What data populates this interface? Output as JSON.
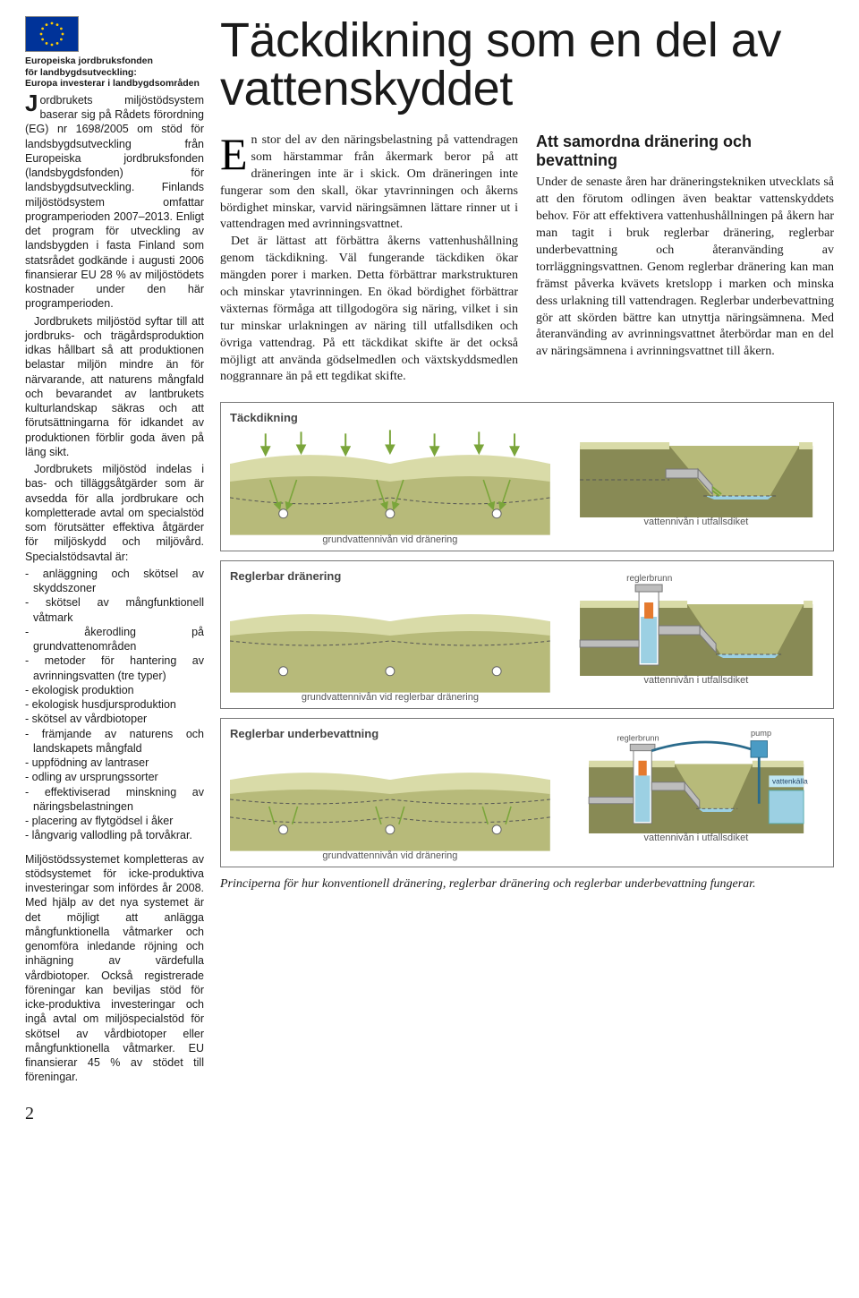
{
  "eu": {
    "caption_l1": "Europeiska jordbruksfonden",
    "caption_l2": "för landbygdsutveckling:",
    "caption_l3": "Europa investerar i landbygdsområden"
  },
  "sidebar": {
    "p1": "Jordbrukets miljöstödsystem baserar sig på Rådets förordning (EG) nr 1698/2005 om stöd för landsbygdsutveckling från Europeiska jordbruksfonden (landsbygdsfonden) för landsbygdsutveckling. Finlands miljöstödsystem omfattar programperioden 2007–2013. Enligt det program för utveckling av landsbygden i fasta Finland som statsrådet godkände i augusti 2006 finansierar EU 28 % av miljöstödets kostnader under den här programperioden.",
    "p2": "Jordbrukets miljöstöd syftar till att jordbruks- och trägårdsproduktion idkas hållbart så att produktionen belastar miljön mindre än för närvarande, att naturens mångfald och bevarandet av lantbrukets kulturlandskap säkras och att förutsättningarna för idkandet av produktionen förblir goda även på läng sikt.",
    "p3": "Jordbrukets miljöstöd indelas i bas- och tilläggsåtgärder som är avsedda för alla jordbrukare och kompletterade avtal om specialstöd som förutsätter effektiva åtgärder för miljöskydd och miljövård. Specialstödsavtal är:",
    "bullets": [
      "anläggning och skötsel av skyddszoner",
      "skötsel av mångfunktionell våtmark",
      "åkerodling på grundvattenområden",
      "metoder för hantering av avrinningsvatten (tre typer)",
      "ekologisk produktion",
      "ekologisk husdjursproduktion",
      "skötsel av vårdbiotoper",
      "främjande av naturens och landskapets mångfald",
      "uppfödning av lantraser",
      "odling av ursprungssorter",
      "effektiviserad minskning av näringsbelastningen",
      "placering av flytgödsel i åker",
      "långvarig vallodling på torvåkrar."
    ],
    "p4": "Miljöstödssystemet kompletteras av stödsystemet för icke-produktiva investeringar som infördes år 2008. Med hjälp av det nya systemet är det möjligt att anlägga mångfunktionella våtmarker och genomföra inledande röjning och inhägning av värdefulla vårdbiotoper. Också registrerade föreningar kan beviljas stöd för icke-produktiva investeringar och ingå avtal om miljöspecialstöd för skötsel av vårdbiotoper eller mångfunktionella våtmarker. EU finansierar 45 % av stödet till föreningar."
  },
  "headline": "Täckdikning som en del av vattenskyddet",
  "article": {
    "p1": "En stor del av den näringsbelastning på vattendragen som härstammar från åkermark beror på att dräneringen inte är i skick. Om dräneringen inte fungerar som den skall, ökar ytavrinningen och åkerns bördighet minskar, varvid näringsämnen lättare rinner ut i vattendragen med avrinningsvattnet.",
    "p2": "Det är lättast att förbättra åkerns vattenhushållning genom täckdikning. Väl fungerande täckdiken ökar mängden porer i marken. Detta förbättrar markstrukturen och minskar ytavrinningen. En ökad bördighet förbättrar växternas förmåga att tillgodogöra sig näring, vilket i sin tur minskar urlakningen av näring till utfallsdiken och övriga vattendrag. På ett täckdikat skifte är det också möjligt att använda gödselmedlen och växtskyddsmedlen noggrannare än på ett tegdikat skifte.",
    "h3": "Att samordna dränering och bevattning",
    "p3": "Under de senaste åren har dräneringstekniken utvecklats så att den förutom odlingen även beaktar vattenskyddets behov. För att effektivera vattenhushållningen på åkern har man tagit i bruk reglerbar dränering, reglerbar underbevattning och återanvänding av torrläggningsvattnen. Genom reglerbar dränering kan man främst påverka kvävets kretslopp i marken och minska dess urlakning till vattendragen. Reglerbar underbevattning gör att skörden bättre kan utnyttja näringsämnena. Med återanvänding av avrinningsvattnet återbördar man en del av näringsämnena i avrinningsvattnet till åkern."
  },
  "diagrams": {
    "colors": {
      "soil_top": "#d9dba8",
      "soil_bot": "#b7ba7a",
      "water": "#9cd0e3",
      "ground_dark": "#888a55",
      "line": "#555",
      "arrow": "#7aa53a",
      "pipe": "#bdbdbd",
      "well_fill": "#e57a2e",
      "pump_fill": "#4a9bc4",
      "pump_label_bg": "#bfe6f3"
    },
    "d1": {
      "title": "Täckdikning",
      "left_label": "grundvattennivån vid dränering",
      "right_label": "vattennivån i utfallsdiket"
    },
    "d2": {
      "title": "Reglerbar dränering",
      "left_label": "grundvattennivån vid reglerbar dränering",
      "right_label": "vattennivån i utfallsdiket",
      "well_label": "reglerbrunn"
    },
    "d3": {
      "title": "Reglerbar underbevattning",
      "left_label": "grundvattennivån vid dränering",
      "right_label": "vattennivån i utfallsdiket",
      "well_label": "reglerbrunn",
      "pump_label": "pump",
      "source_label": "vattenkälla"
    },
    "caption": "Principerna för hur konventionell dränering, reglerbar dränering och reglerbar underbevattning fungerar."
  },
  "pagenum": "2"
}
